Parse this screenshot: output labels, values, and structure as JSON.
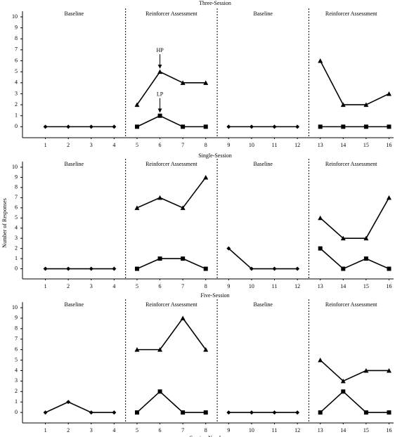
{
  "chart_data": [
    {
      "type": "line",
      "title": "Three-Session",
      "phase_labels": [
        "Baseline",
        "Reinforcer Assessment",
        "Baseline",
        "Reinforcer Assessment"
      ],
      "x": [
        1,
        2,
        3,
        4,
        5,
        6,
        7,
        8,
        9,
        10,
        11,
        12,
        13,
        14,
        15,
        16
      ],
      "xlim": [
        0,
        16.2
      ],
      "xticks": [
        1,
        2,
        3,
        4,
        5,
        6,
        7,
        8,
        9,
        10,
        11,
        12,
        13,
        14,
        15,
        16
      ],
      "ylim": [
        -1,
        10
      ],
      "yticks": [
        0,
        1,
        2,
        3,
        4,
        5,
        6,
        7,
        8,
        9,
        10
      ],
      "series": [
        {
          "marker": "diamond",
          "color": "#000000",
          "values": [
            0,
            0,
            0,
            0,
            null,
            null,
            null,
            null,
            0,
            0,
            0,
            0,
            null,
            null,
            null,
            null
          ]
        },
        {
          "marker": "triangle",
          "color": "#000000",
          "values": [
            null,
            null,
            null,
            null,
            2,
            5,
            4,
            4,
            null,
            null,
            null,
            null,
            6,
            2,
            2,
            3
          ]
        },
        {
          "marker": "square",
          "color": "#000000",
          "values": [
            null,
            null,
            null,
            null,
            0,
            1,
            0,
            0,
            null,
            null,
            null,
            null,
            0,
            0,
            0,
            0
          ]
        }
      ],
      "annotations": [
        {
          "text": "HP",
          "x": 6,
          "y": 5
        },
        {
          "text": "LP",
          "x": 6,
          "y": 1
        }
      ]
    },
    {
      "type": "line",
      "title": "Single-Session",
      "phase_labels": [
        "Baseline",
        "Reinforcer Assessment",
        "Baseline",
        "Reinforcer Assessment"
      ],
      "x": [
        1,
        2,
        3,
        4,
        5,
        6,
        7,
        8,
        9,
        10,
        11,
        12,
        13,
        14,
        15,
        16
      ],
      "xlim": [
        0,
        16.2
      ],
      "xticks": [
        1,
        2,
        3,
        4,
        5,
        6,
        7,
        8,
        9,
        10,
        11,
        12,
        13,
        14,
        15,
        16
      ],
      "ylim": [
        -1,
        10
      ],
      "yticks": [
        0,
        1,
        2,
        3,
        4,
        5,
        6,
        7,
        8,
        9,
        10
      ],
      "ylabel": "Number of Responses",
      "series": [
        {
          "marker": "diamond",
          "color": "#000000",
          "values": [
            0,
            0,
            0,
            0,
            null,
            null,
            null,
            null,
            2,
            0,
            0,
            0,
            null,
            null,
            null,
            null
          ]
        },
        {
          "marker": "triangle",
          "color": "#000000",
          "values": [
            null,
            null,
            null,
            null,
            6,
            7,
            6,
            9,
            null,
            null,
            null,
            null,
            5,
            3,
            3,
            7
          ]
        },
        {
          "marker": "square",
          "color": "#000000",
          "values": [
            null,
            null,
            null,
            null,
            0,
            1,
            1,
            0,
            null,
            null,
            null,
            null,
            2,
            0,
            1,
            0
          ]
        }
      ]
    },
    {
      "type": "line",
      "title": "Five-Session",
      "phase_labels": [
        "Baseline",
        "Reinforcer Assessment",
        "Baseline",
        "Reinforcer Assessment"
      ],
      "x": [
        1,
        2,
        3,
        4,
        5,
        6,
        7,
        8,
        9,
        10,
        11,
        12,
        13,
        14,
        15,
        16
      ],
      "xlim": [
        0,
        16.2
      ],
      "xticks": [
        1,
        2,
        3,
        4,
        5,
        6,
        7,
        8,
        9,
        10,
        11,
        12,
        13,
        14,
        15,
        16
      ],
      "ylim": [
        -1,
        10
      ],
      "yticks": [
        0,
        1,
        2,
        3,
        4,
        5,
        6,
        7,
        8,
        9,
        10
      ],
      "xlabel": "Session Number",
      "series": [
        {
          "marker": "diamond",
          "color": "#000000",
          "values": [
            0,
            1,
            0,
            0,
            null,
            null,
            null,
            null,
            0,
            0,
            0,
            0,
            null,
            null,
            null,
            null
          ]
        },
        {
          "marker": "triangle",
          "color": "#000000",
          "values": [
            null,
            null,
            null,
            null,
            6,
            6,
            9,
            6,
            null,
            null,
            null,
            null,
            5,
            3,
            4,
            4
          ]
        },
        {
          "marker": "square",
          "color": "#000000",
          "values": [
            null,
            null,
            null,
            null,
            0,
            2,
            0,
            0,
            null,
            null,
            null,
            null,
            0,
            2,
            0,
            0
          ]
        }
      ]
    }
  ]
}
